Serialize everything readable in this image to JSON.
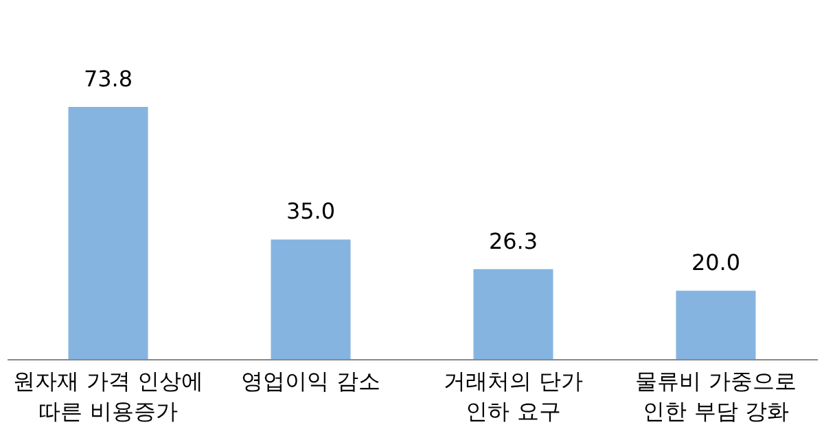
{
  "chart_data": {
    "type": "bar",
    "categories": [
      "원자재 가격 인상에\n따른 비용증가",
      "영업이익 감소",
      "거래처의 단가\n인하 요구",
      "물류비 가중으로\n인한 부담 강화"
    ],
    "values": [
      73.8,
      35.0,
      26.3,
      20.0
    ],
    "color": "#85b4e0",
    "value_labels": [
      "73.8",
      "35.0",
      "26.3",
      "20.0"
    ]
  }
}
